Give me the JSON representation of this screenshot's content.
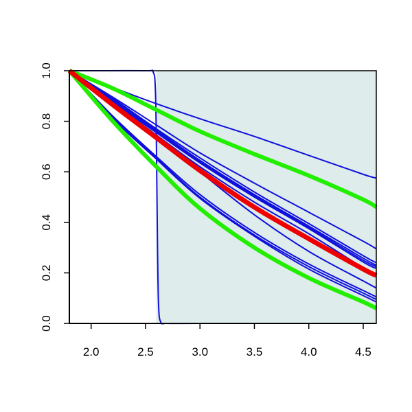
{
  "chart_data": {
    "type": "line",
    "title": "",
    "xlabel": "",
    "ylabel": "",
    "xlim": [
      1.8,
      4.62
    ],
    "ylim": [
      0.0,
      1.0
    ],
    "x_ticks": [
      2.0,
      2.5,
      3.0,
      3.5,
      4.0,
      4.5
    ],
    "x_tick_labels": [
      "2.0",
      "2.5",
      "3.0",
      "3.5",
      "4.0",
      "4.5"
    ],
    "y_ticks": [
      0.0,
      0.2,
      0.4,
      0.6,
      0.8,
      1.0
    ],
    "y_tick_labels": [
      "0.0",
      "0.2",
      "0.4",
      "0.6",
      "0.8",
      "1.0"
    ],
    "grid": false,
    "legend": "none",
    "shaded_region": {
      "x": [
        2.6,
        4.62
      ],
      "color": "#deeceb"
    },
    "colors": {
      "blue": "#1010dd",
      "green": "#22ee00",
      "red": "#ee0000"
    },
    "series": [
      {
        "color": "blue",
        "width": 2,
        "x": [
          1.8,
          2.0,
          2.5,
          2.57,
          2.59,
          2.6,
          2.61,
          2.62,
          2.64,
          2.7,
          3.0,
          4.0,
          4.62
        ],
        "y": [
          1.0,
          1.0,
          1.0,
          0.995,
          0.93,
          0.7,
          0.3,
          0.07,
          0.005,
          0.0,
          0.0,
          0.0,
          0.0
        ]
      },
      {
        "color": "blue",
        "width": 2,
        "x": [
          1.8,
          2.5,
          3.0,
          3.5,
          4.0,
          4.5,
          4.62
        ],
        "y": [
          1.0,
          0.885,
          0.81,
          0.74,
          0.665,
          0.59,
          0.575
        ]
      },
      {
        "color": "blue",
        "width": 2,
        "x": [
          1.8,
          2.2,
          2.6,
          3.0,
          3.5,
          4.0,
          4.5,
          4.62
        ],
        "y": [
          1.0,
          0.895,
          0.785,
          0.675,
          0.555,
          0.44,
          0.325,
          0.295
        ]
      },
      {
        "color": "blue",
        "width": 2,
        "x": [
          1.8,
          2.2,
          2.6,
          3.0,
          3.5,
          4.0,
          4.5,
          4.62
        ],
        "y": [
          1.0,
          0.89,
          0.77,
          0.655,
          0.52,
          0.395,
          0.268,
          0.24
        ]
      },
      {
        "color": "blue",
        "width": 2,
        "x": [
          1.8,
          2.2,
          2.6,
          3.0,
          3.5,
          4.0,
          4.5,
          4.62
        ],
        "y": [
          1.0,
          0.885,
          0.765,
          0.645,
          0.51,
          0.385,
          0.258,
          0.23
        ]
      },
      {
        "color": "blue",
        "width": 2,
        "x": [
          1.8,
          2.2,
          2.6,
          3.0,
          3.5,
          4.0,
          4.5,
          4.62
        ],
        "y": [
          1.0,
          0.88,
          0.76,
          0.64,
          0.505,
          0.38,
          0.25,
          0.225
        ]
      },
      {
        "color": "blue",
        "width": 2,
        "x": [
          1.8,
          2.2,
          2.6,
          3.0,
          3.5,
          4.0,
          4.5,
          4.62
        ],
        "y": [
          1.0,
          0.875,
          0.755,
          0.635,
          0.5,
          0.375,
          0.243,
          0.218
        ]
      },
      {
        "color": "blue",
        "width": 2,
        "x": [
          1.8,
          2.2,
          2.6,
          3.0,
          3.5,
          4.0,
          4.5,
          4.62
        ],
        "y": [
          1.0,
          0.87,
          0.745,
          0.62,
          0.48,
          0.355,
          0.22,
          0.195
        ]
      },
      {
        "color": "blue",
        "width": 2,
        "x": [
          1.8,
          2.2,
          2.6,
          3.0,
          3.5,
          4.0,
          4.5,
          4.62
        ],
        "y": [
          1.0,
          0.87,
          0.745,
          0.6,
          0.43,
          0.285,
          0.168,
          0.14
        ]
      },
      {
        "color": "blue",
        "width": 2,
        "x": [
          1.8,
          2.2,
          2.6,
          3.0,
          3.5,
          4.0,
          4.5,
          4.62
        ],
        "y": [
          1.0,
          0.82,
          0.66,
          0.51,
          0.36,
          0.235,
          0.13,
          0.105
        ]
      },
      {
        "color": "blue",
        "width": 2,
        "x": [
          1.8,
          2.2,
          2.6,
          3.0,
          3.5,
          4.0,
          4.5,
          4.62
        ],
        "y": [
          1.0,
          0.815,
          0.655,
          0.5,
          0.35,
          0.225,
          0.12,
          0.095
        ]
      },
      {
        "color": "blue",
        "width": 2,
        "x": [
          1.8,
          2.2,
          2.6,
          3.0,
          3.5,
          4.0,
          4.5,
          4.62
        ],
        "y": [
          1.0,
          0.81,
          0.65,
          0.495,
          0.345,
          0.215,
          0.11,
          0.085
        ]
      },
      {
        "color": "green",
        "width": 6,
        "x": [
          1.8,
          2.2,
          2.6,
          3.0,
          3.5,
          4.0,
          4.5,
          4.62
        ],
        "y": [
          1.0,
          0.93,
          0.845,
          0.76,
          0.67,
          0.585,
          0.49,
          0.46
        ]
      },
      {
        "color": "green",
        "width": 6,
        "x": [
          1.8,
          2.2,
          2.6,
          3.0,
          3.5,
          4.0,
          4.5,
          4.62
        ],
        "y": [
          1.0,
          0.8,
          0.62,
          0.455,
          0.3,
          0.18,
          0.085,
          0.06
        ]
      },
      {
        "color": "red",
        "width": 7,
        "x": [
          1.8,
          2.2,
          2.6,
          3.0,
          3.5,
          4.0,
          4.5,
          4.62
        ],
        "y": [
          1.0,
          0.865,
          0.735,
          0.605,
          0.46,
          0.335,
          0.215,
          0.19
        ]
      }
    ]
  }
}
